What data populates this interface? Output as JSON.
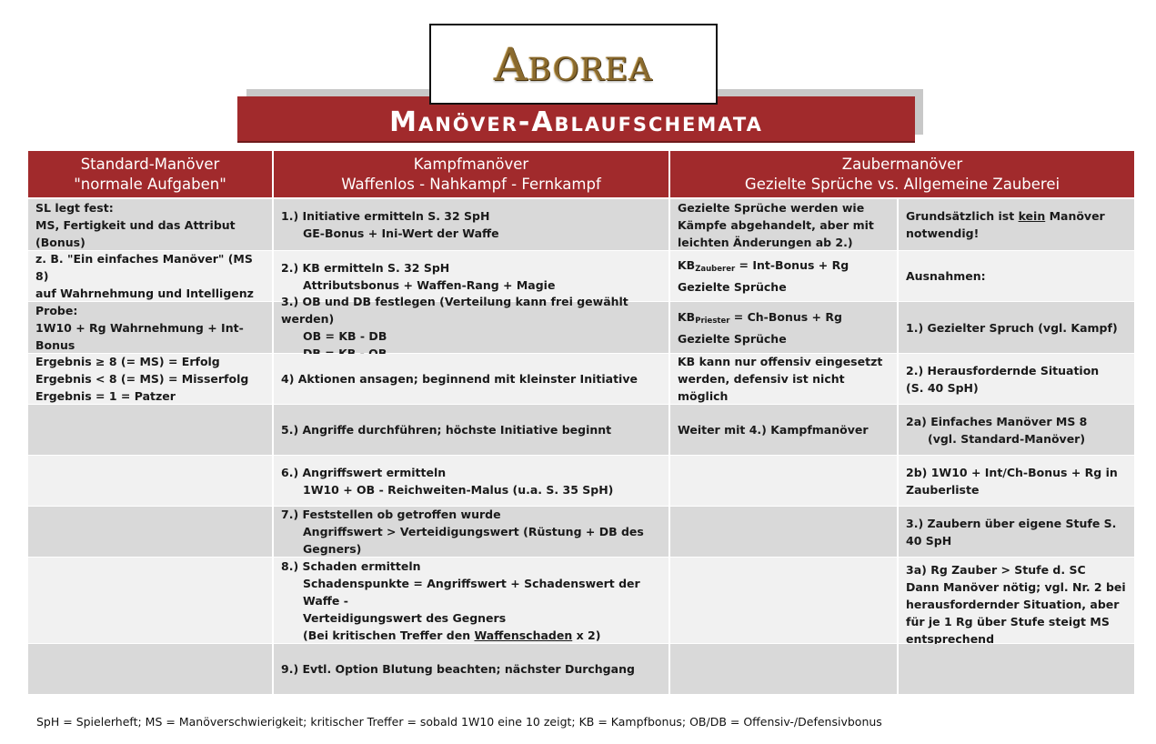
{
  "logo": {
    "text": "Aborea"
  },
  "title": "Manöver-Ablaufschemata",
  "headers": {
    "standard": {
      "line1": "Standard-Manöver",
      "line2": "\"normale Aufgaben\""
    },
    "kampf": {
      "line1": "Kampfmanöver",
      "line2": "Waffenlos - Nahkampf - Fernkampf"
    },
    "zauber": {
      "line1": "Zaubermanöver",
      "line2": "Gezielte Sprüche vs. Allgemeine Zauberei"
    }
  },
  "standard": [
    {
      "l1": "SL legt fest:",
      "l2": "MS, Fertigkeit und das Attribut (Bonus)"
    },
    {
      "l1": "z. B. \"Ein einfaches Manöver\" (MS 8)",
      "l2": "auf Wahrnehmung und Intelligenz"
    },
    {
      "l1": "Probe:",
      "l2": "1W10 + Rg Wahrnehmung + Int-Bonus"
    },
    {
      "l1": "Ergebnis ≥ 8 (= MS) = Erfolg",
      "l2": "Ergebnis < 8 (= MS) = Misserfolg",
      "l3": "Ergebnis = 1 = Patzer"
    }
  ],
  "kampf": [
    {
      "main": "1.) Initiative ermitteln S. 32 SpH",
      "sub": [
        "GE-Bonus + Ini-Wert der Waffe"
      ]
    },
    {
      "main": "2.) KB ermitteln S. 32 SpH",
      "sub": [
        "Attributsbonus + Waffen-Rang + Magie"
      ]
    },
    {
      "main": "3.) OB und DB festlegen (Verteilung kann frei gewählt werden)",
      "sub": [
        "OB = KB - DB",
        "DB = KB - OB"
      ]
    },
    {
      "main": "4) Aktionen ansagen; beginnend mit kleinster Initiative",
      "sub": []
    },
    {
      "main": "5.) Angriffe durchführen; höchste Initiative beginnt",
      "sub": []
    },
    {
      "main": "6.) Angriffswert ermitteln",
      "sub": [
        "1W10 + OB - Reichweiten-Malus (u.a. S. 35 SpH)"
      ]
    },
    {
      "main": "7.) Feststellen ob getroffen wurde",
      "sub": [
        "Angriffswert > Verteidigungswert (Rüstung + DB des Gegners)"
      ]
    },
    {
      "main": "8.) Schaden ermitteln",
      "sub": [
        "Schadenspunkte = Angriffswert + Schadenswert der Waffe -",
        "Verteidigungswert des Gegners"
      ],
      "note_pre": "(Bei kritischen Treffer den ",
      "note_u": "Waffenschaden",
      "note_post": " x 2)"
    },
    {
      "main": "9.) Evtl. Option Blutung beachten; nächster Durchgang",
      "sub": []
    }
  ],
  "gezielt": {
    "r1": "Gezielte Sprüche werden wie Kämpfe abgehandelt, aber mit leichten Änderungen ab 2.)",
    "r2_pre": "KB",
    "r2_sub": "Zauberer",
    "r2_post": " = Int-Bonus + Rg Gezielte Sprüche",
    "r3_pre": "KB",
    "r3_sub": "Priester",
    "r3_post": " = Ch-Bonus + Rg Gezielte Sprüche",
    "r4": "KB kann nur offensiv eingesetzt werden, defensiv ist nicht möglich",
    "r5": "Weiter mit 4.) Kampfmanöver"
  },
  "allgemein": {
    "r1_pre": "Grundsätzlich ist ",
    "r1_u": "kein",
    "r1_post": " Manöver notwendig!",
    "r2": "Ausnahmen:",
    "r3": "1.) Gezielter Spruch (vgl. Kampf)",
    "r4a": "2.) Herausfordernde Situation",
    "r4b": "(S. 40 SpH)",
    "r5a": "2a) Einfaches Manöver MS 8",
    "r5b": "(vgl. Standard-Manöver)",
    "r6": "2b) 1W10 + Int/Ch-Bonus + Rg in Zauberliste",
    "r7": "3.) Zaubern über eigene Stufe S. 40 SpH",
    "r8a": "3a) Rg Zauber > Stufe d. SC",
    "r8b": "Dann Manöver nötig; vgl. Nr. 2 bei herausfordernder Situation, aber für je 1 Rg über Stufe steigt MS entsprechend"
  },
  "footer": "SpH = Spielerheft; MS = Manöverschwierigkeit; kritischer Treffer = sobald 1W10 eine 10 zeigt; KB = Kampfbonus; OB/DB = Offensiv-/Defensivbonus"
}
